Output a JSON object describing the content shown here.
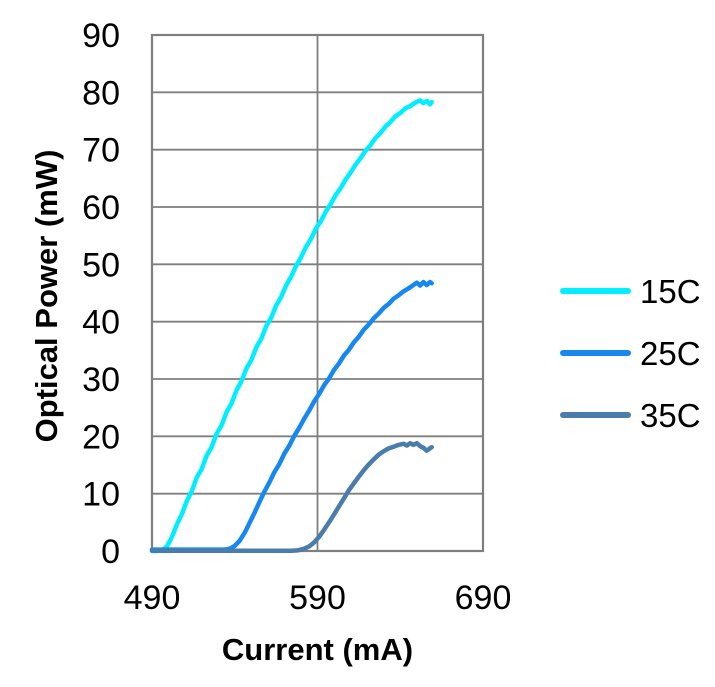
{
  "chart_data": {
    "type": "line",
    "title": "",
    "xlabel": "Current (mA)",
    "ylabel": "Optical Power (mW)",
    "xlim": [
      490,
      690
    ],
    "ylim": [
      0,
      90
    ],
    "xticks": [
      490,
      590,
      690
    ],
    "yticks": [
      0,
      10,
      20,
      30,
      40,
      50,
      60,
      70,
      80,
      90
    ],
    "grid": true,
    "legend_position": "right-center",
    "axis_color": "#7f7f7f",
    "text_color": "#000000",
    "series": [
      {
        "name": "15C",
        "color": "#00EEFF",
        "points": [
          [
            490,
            0
          ],
          [
            493,
            0
          ],
          [
            496,
            0.1
          ],
          [
            499,
            0.8
          ],
          [
            502,
            2.4
          ],
          [
            505,
            4.6
          ],
          [
            508,
            6.4
          ],
          [
            511,
            8.7
          ],
          [
            514,
            10.4
          ],
          [
            517,
            12.8
          ],
          [
            520,
            14.3
          ],
          [
            523,
            16.6
          ],
          [
            526,
            18.1
          ],
          [
            529,
            20.4
          ],
          [
            532,
            21.9
          ],
          [
            535,
            24.2
          ],
          [
            538,
            25.7
          ],
          [
            541,
            28.0
          ],
          [
            544,
            29.6
          ],
          [
            547,
            31.8
          ],
          [
            550,
            33.3
          ],
          [
            553,
            35.5
          ],
          [
            556,
            37.0
          ],
          [
            559,
            39.2
          ],
          [
            562,
            40.7
          ],
          [
            565,
            42.8
          ],
          [
            568,
            44.3
          ],
          [
            571,
            46.3
          ],
          [
            574,
            47.8
          ],
          [
            577,
            49.7
          ],
          [
            580,
            51.2
          ],
          [
            583,
            53.0
          ],
          [
            586,
            54.4
          ],
          [
            589,
            56.2
          ],
          [
            592,
            57.5
          ],
          [
            595,
            59.2
          ],
          [
            598,
            60.5
          ],
          [
            601,
            62.1
          ],
          [
            604,
            63.3
          ],
          [
            607,
            64.8
          ],
          [
            610,
            66.0
          ],
          [
            613,
            67.4
          ],
          [
            616,
            68.5
          ],
          [
            619,
            69.8
          ],
          [
            622,
            70.8
          ],
          [
            625,
            72.0
          ],
          [
            628,
            72.9
          ],
          [
            631,
            74.0
          ],
          [
            634,
            74.8
          ],
          [
            637,
            75.8
          ],
          [
            640,
            76.4
          ],
          [
            643,
            77.2
          ],
          [
            646,
            77.6
          ],
          [
            649,
            78.2
          ],
          [
            652,
            78.6
          ],
          [
            654,
            78.1
          ],
          [
            656,
            78.5
          ],
          [
            658,
            77.9
          ],
          [
            659,
            78.3
          ]
        ]
      },
      {
        "name": "25C",
        "color": "#1688F0",
        "points": [
          [
            490,
            0.25
          ],
          [
            505,
            0.25
          ],
          [
            518,
            0.25
          ],
          [
            528,
            0.25
          ],
          [
            534,
            0.25
          ],
          [
            537,
            0.4
          ],
          [
            540,
            0.9
          ],
          [
            543,
            1.8
          ],
          [
            546,
            3.2
          ],
          [
            549,
            4.9
          ],
          [
            552,
            6.7
          ],
          [
            555,
            8.6
          ],
          [
            558,
            10.4
          ],
          [
            561,
            12.0
          ],
          [
            564,
            13.8
          ],
          [
            567,
            15.2
          ],
          [
            570,
            17.0
          ],
          [
            573,
            18.4
          ],
          [
            576,
            20.1
          ],
          [
            579,
            21.5
          ],
          [
            582,
            23.1
          ],
          [
            585,
            24.5
          ],
          [
            588,
            26.1
          ],
          [
            591,
            27.4
          ],
          [
            594,
            28.9
          ],
          [
            597,
            30.1
          ],
          [
            600,
            31.6
          ],
          [
            603,
            32.7
          ],
          [
            606,
            34.1
          ],
          [
            609,
            35.1
          ],
          [
            612,
            36.4
          ],
          [
            615,
            37.4
          ],
          [
            618,
            38.6
          ],
          [
            621,
            39.5
          ],
          [
            624,
            40.6
          ],
          [
            627,
            41.4
          ],
          [
            630,
            42.4
          ],
          [
            633,
            43.1
          ],
          [
            636,
            44.0
          ],
          [
            639,
            44.6
          ],
          [
            642,
            45.3
          ],
          [
            645,
            45.8
          ],
          [
            648,
            46.4
          ],
          [
            650,
            46.8
          ],
          [
            652,
            46.3
          ],
          [
            654,
            46.9
          ],
          [
            656,
            46.4
          ],
          [
            658,
            46.9
          ],
          [
            659,
            46.7
          ]
        ]
      },
      {
        "name": "35C",
        "color": "#4A7CAC",
        "points": [
          [
            490,
            0.05
          ],
          [
            510,
            0.05
          ],
          [
            530,
            0.05
          ],
          [
            550,
            0.05
          ],
          [
            565,
            0.05
          ],
          [
            574,
            0.05
          ],
          [
            578,
            0.1
          ],
          [
            582,
            0.4
          ],
          [
            585,
            0.8
          ],
          [
            588,
            1.5
          ],
          [
            591,
            2.5
          ],
          [
            594,
            3.7
          ],
          [
            597,
            5.0
          ],
          [
            600,
            6.4
          ],
          [
            603,
            7.8
          ],
          [
            606,
            9.2
          ],
          [
            609,
            10.6
          ],
          [
            612,
            11.8
          ],
          [
            615,
            13.0
          ],
          [
            618,
            14.1
          ],
          [
            621,
            15.1
          ],
          [
            624,
            16.0
          ],
          [
            627,
            16.8
          ],
          [
            630,
            17.4
          ],
          [
            633,
            17.9
          ],
          [
            636,
            18.2
          ],
          [
            639,
            18.5
          ],
          [
            642,
            18.7
          ],
          [
            644,
            18.4
          ],
          [
            646,
            18.8
          ],
          [
            648,
            18.5
          ],
          [
            650,
            18.8
          ],
          [
            652,
            18.3
          ],
          [
            654,
            18.0
          ],
          [
            656,
            17.5
          ],
          [
            658,
            17.9
          ],
          [
            659,
            18.1
          ]
        ]
      }
    ]
  }
}
